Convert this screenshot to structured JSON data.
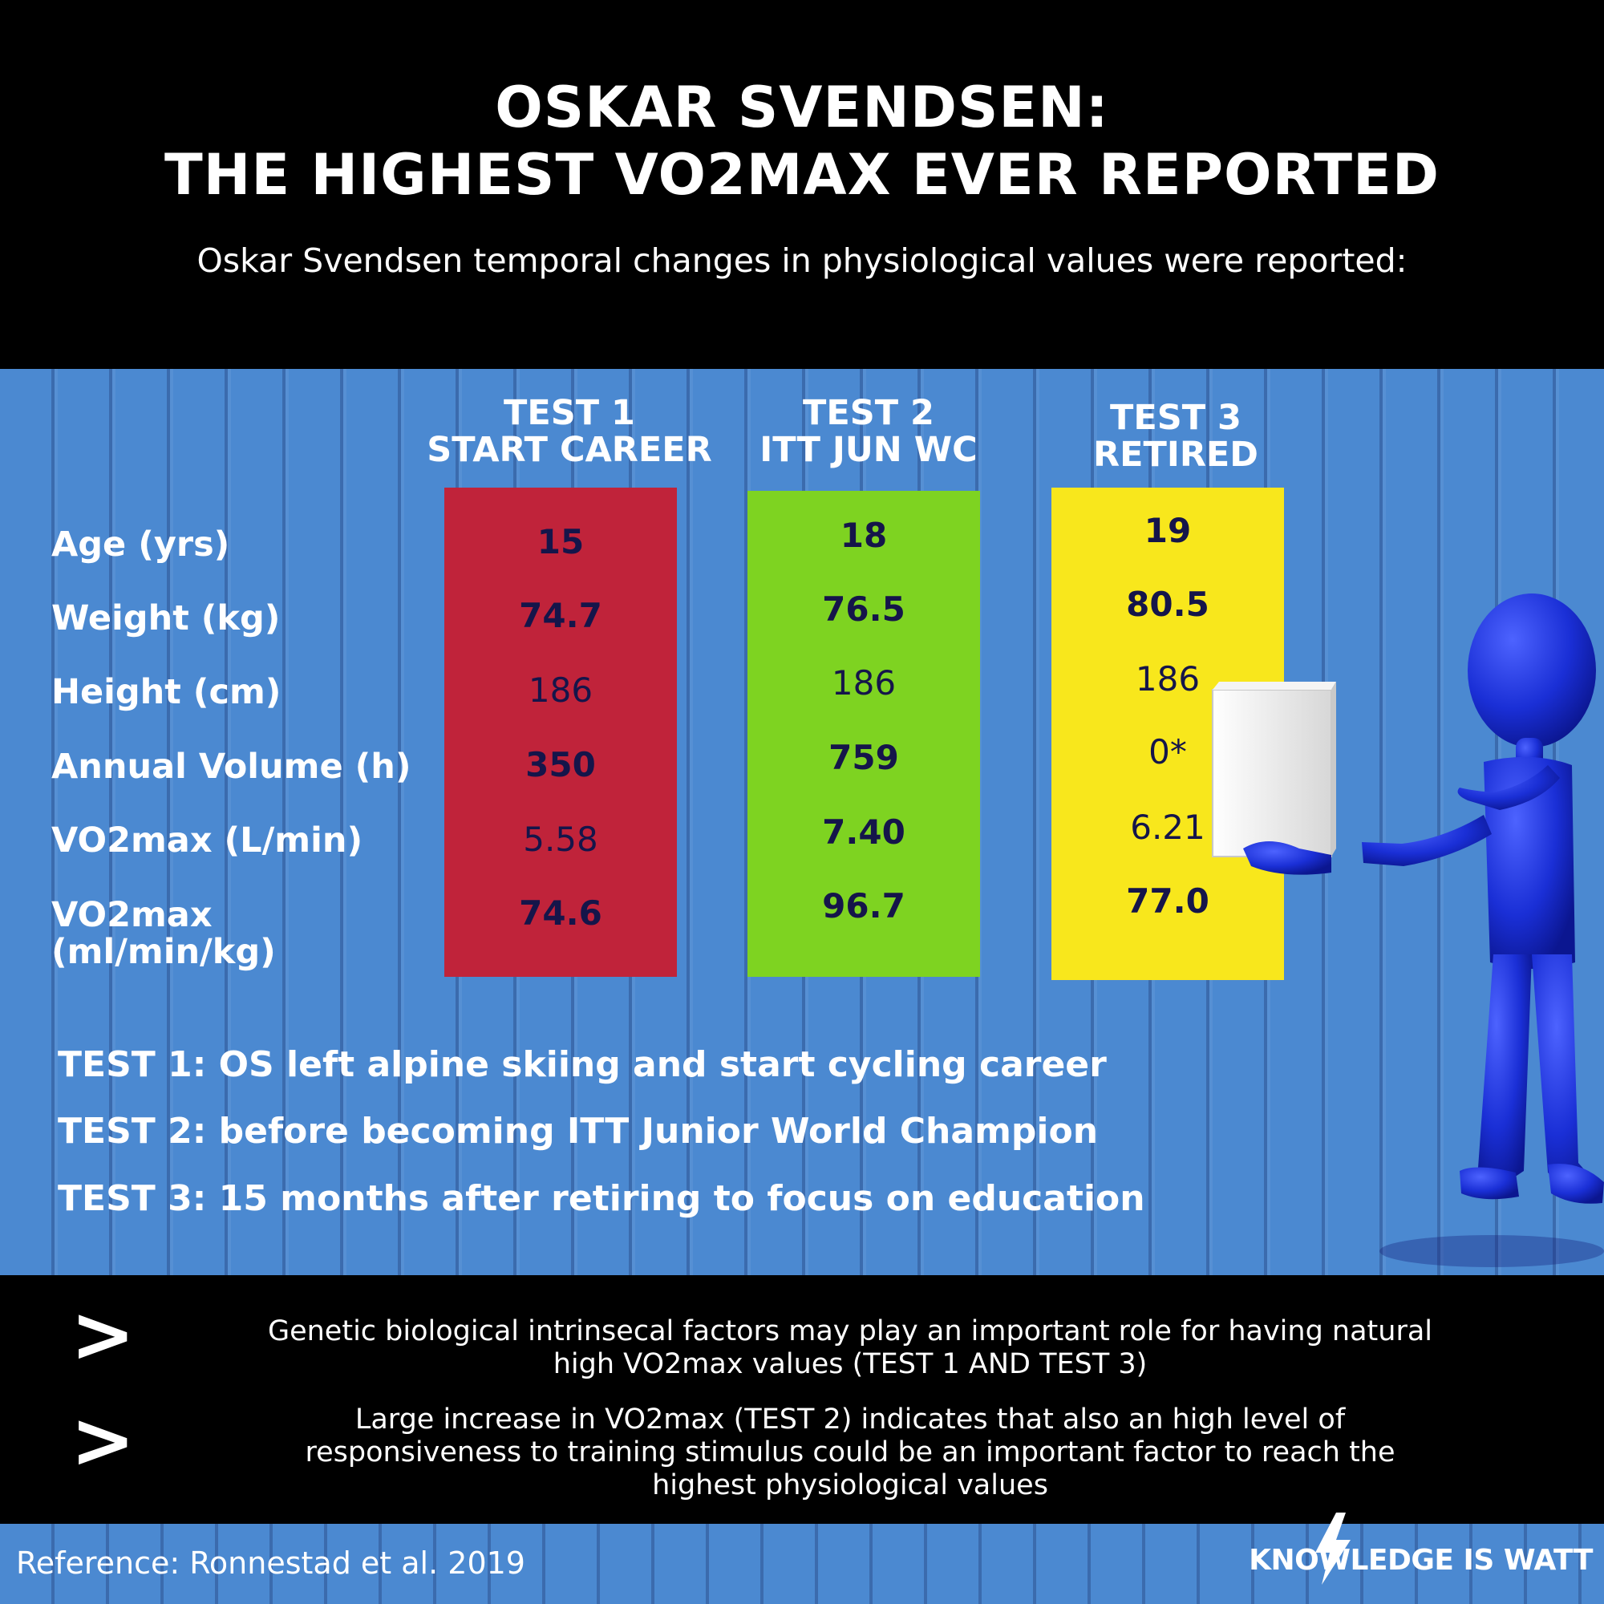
{
  "header": {
    "title_line1": "OSKAR SVENDSEN:",
    "title_line2": "THE HIGHEST VO2MAX EVER REPORTED",
    "subtitle": "Oskar Svendsen temporal changes in physiological values were reported:"
  },
  "columns": [
    {
      "line1": "TEST 1",
      "line2": "START CAREER",
      "color": "#c0233a"
    },
    {
      "line1": "TEST 2",
      "line2": "ITT JUN WC",
      "color": "#7ed321"
    },
    {
      "line1": "TEST 3",
      "line2": "RETIRED",
      "color": "#f8e71c"
    }
  ],
  "rows": [
    {
      "label": "Age (yrs)",
      "values": [
        "15",
        "18",
        "19"
      ]
    },
    {
      "label": "Weight (kg)",
      "values": [
        "74.7",
        "76.5",
        "80.5"
      ]
    },
    {
      "label": "Height (cm)",
      "values": [
        "186",
        "186",
        "186"
      ]
    },
    {
      "label": "Annual Volume (h)",
      "values": [
        "350",
        "759",
        "0*"
      ]
    },
    {
      "label": "VO2max (L/min)",
      "values": [
        "5.58",
        "7.40",
        "6.21"
      ]
    },
    {
      "label_line1": "VO2max",
      "label_line2": "(ml/min/kg)",
      "values": [
        "74.6",
        "96.7",
        "77.0"
      ]
    }
  ],
  "notes": [
    "TEST 1: OS left alpine skiing and start cycling career",
    "TEST 2: before becoming ITT Junior World Champion",
    "TEST 3: 15 months after retiring to focus on education"
  ],
  "conclusions": [
    {
      "arrow": ">",
      "line1": "Genetic biological intrinsecal factors may play an important role for having natural",
      "line2": "high VO2max values (TEST 1 AND TEST 3)"
    },
    {
      "arrow": ">",
      "line1": "Large increase in VO2max (TEST 2) indicates that also an high level of",
      "line2": "responsiveness to training stimulus could be an important factor to reach the",
      "line3": "highest physiological values"
    }
  ],
  "footer": {
    "reference": "Reference: Ronnestad et al. 2019",
    "brand": "KNOWLEDGE IS WATT",
    "brand_icon": "lightning-bolt-icon"
  },
  "figure": {
    "icon": "blue-stick-figure-holding-box-icon",
    "color": "#1a2fd6"
  }
}
